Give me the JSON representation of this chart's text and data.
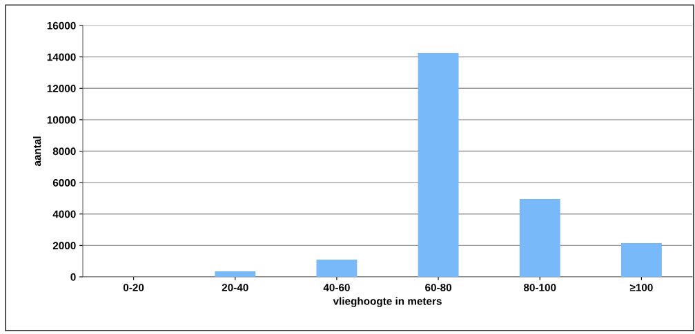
{
  "chart_data": {
    "type": "bar",
    "xlabel": "vlieghoogte in meters",
    "ylabel": "aantal",
    "categories": [
      "0-20",
      "20-40",
      "40-60",
      "60-80",
      "80-100",
      "≥100"
    ],
    "values": [
      0,
      350,
      1100,
      14250,
      4950,
      2150
    ],
    "color": "#77b9f9",
    "ylim": [
      0,
      16000
    ],
    "yticks": [
      0,
      2000,
      4000,
      6000,
      8000,
      10000,
      12000,
      14000,
      16000
    ],
    "grid": "y"
  }
}
